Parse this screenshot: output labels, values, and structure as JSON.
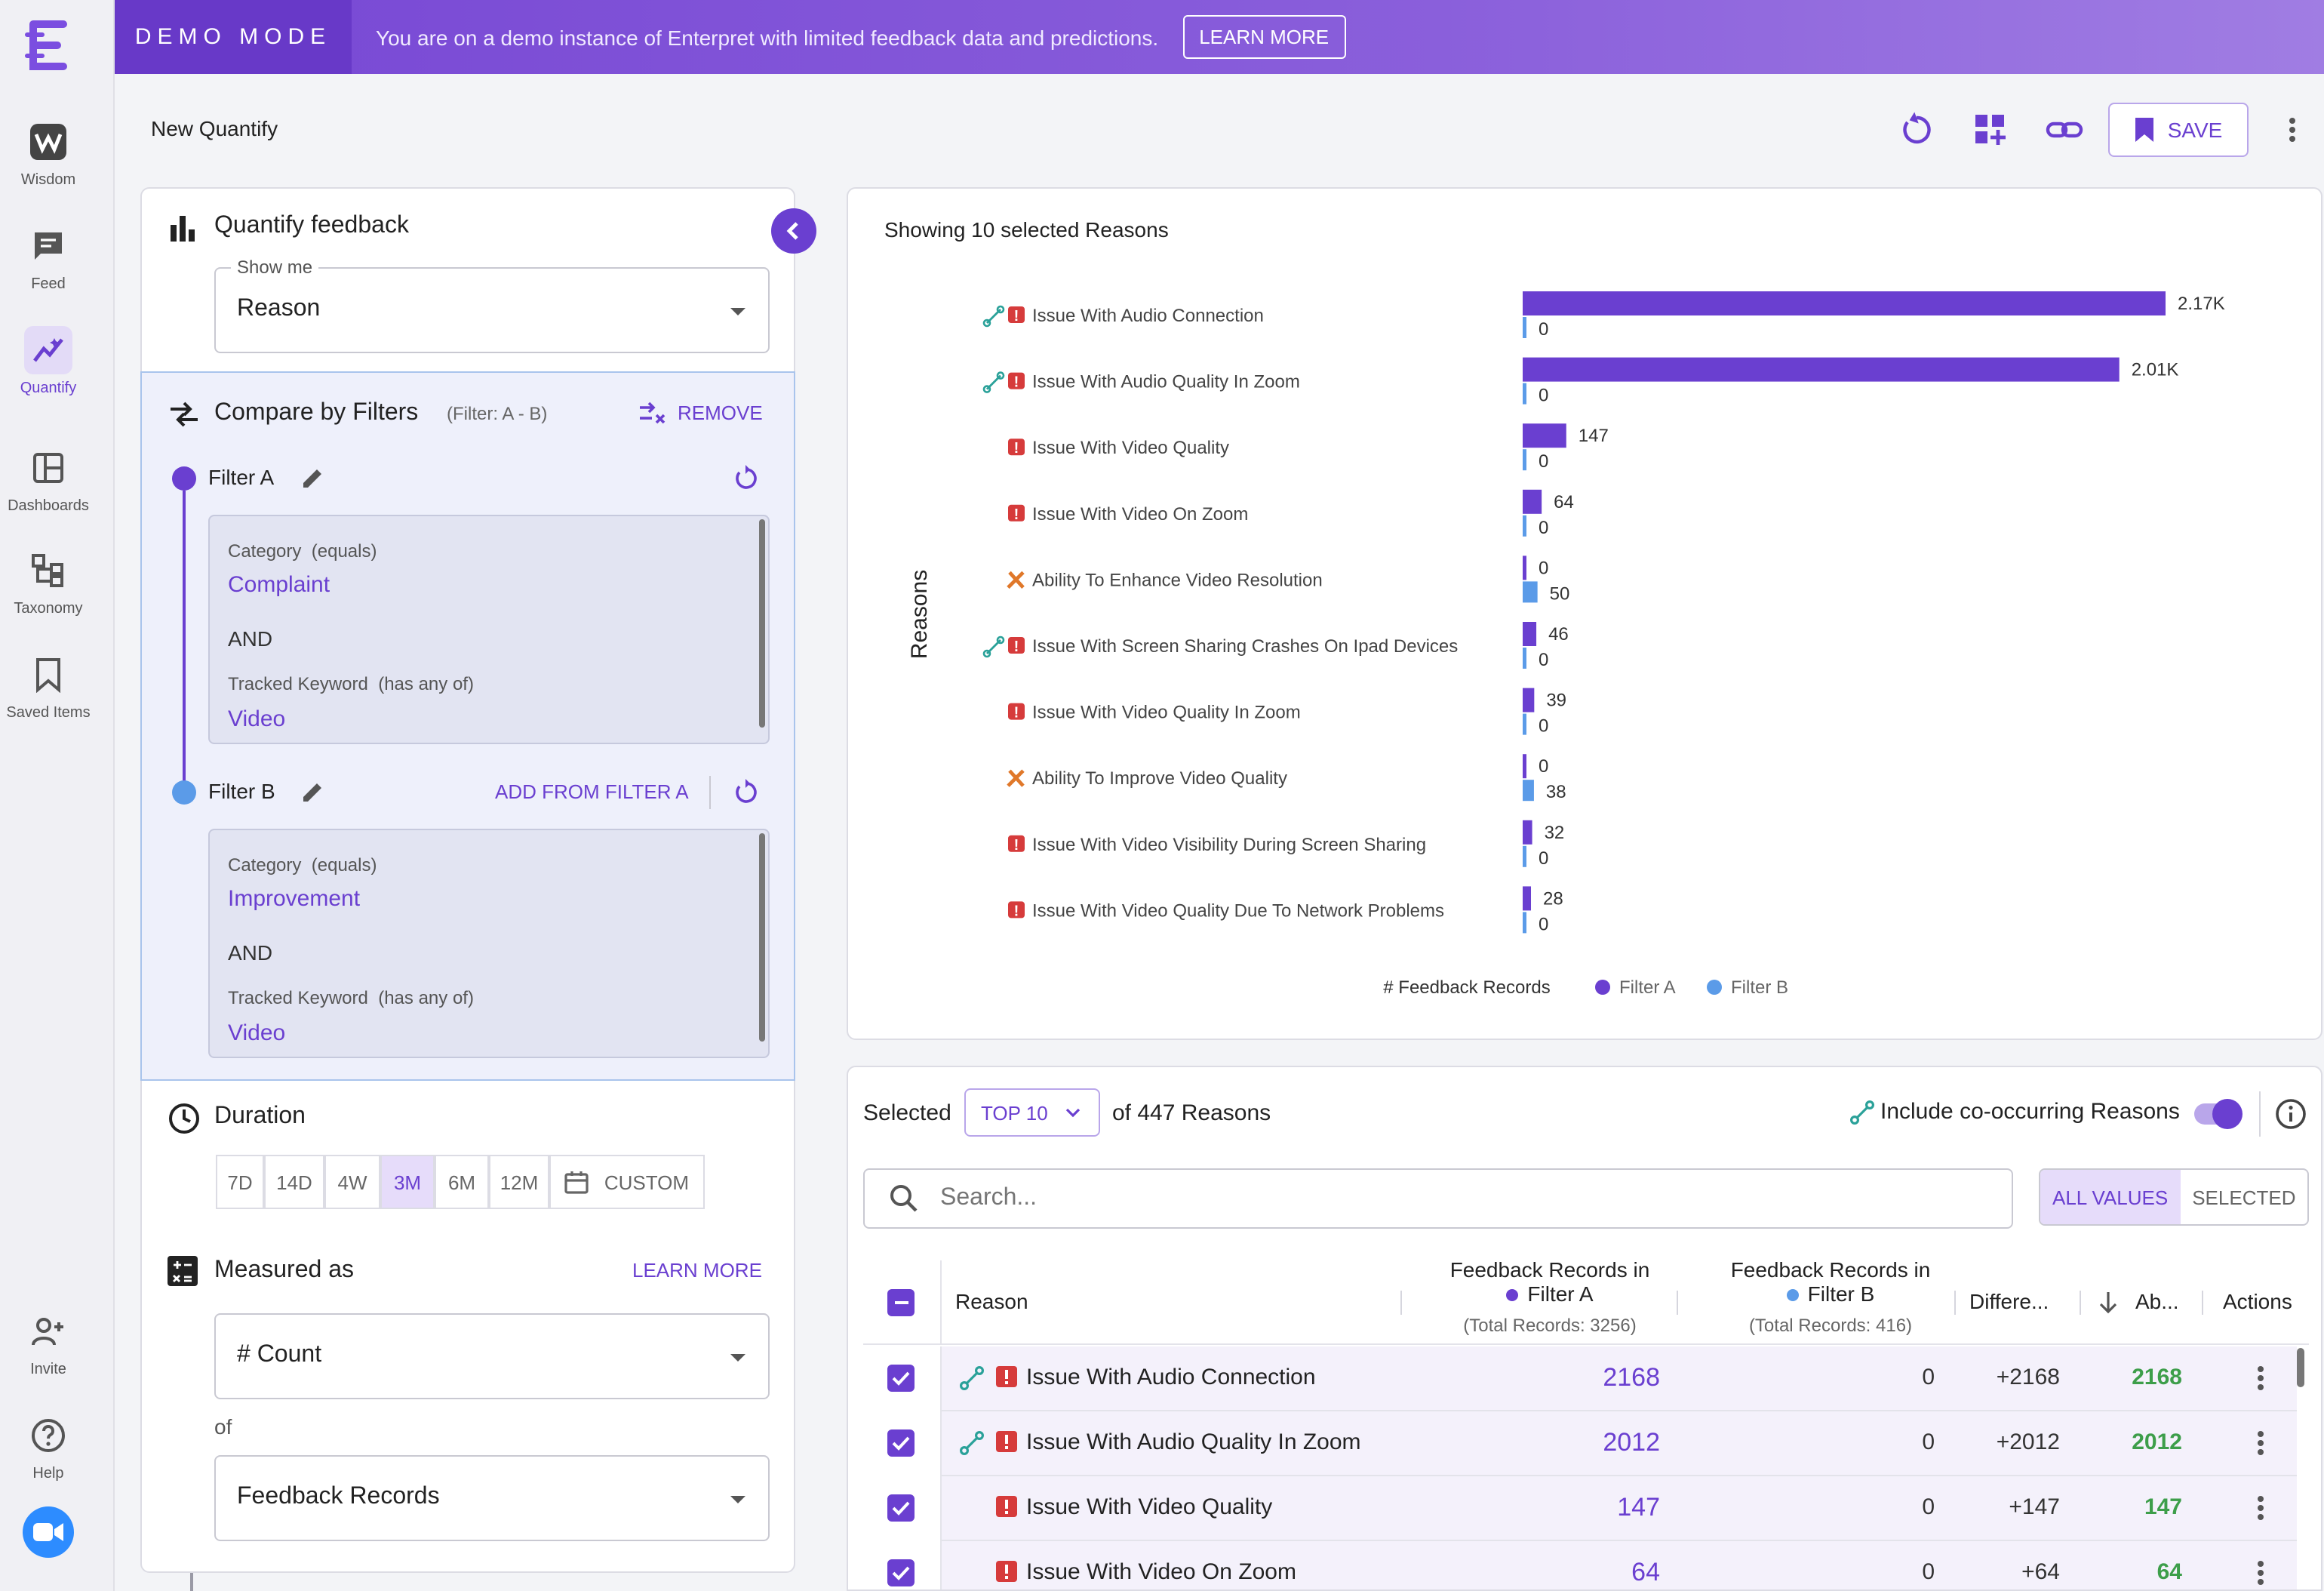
{
  "nav": {
    "items": [
      {
        "label": "Wisdom"
      },
      {
        "label": "Feed"
      },
      {
        "label": "Quantify"
      },
      {
        "label": "Dashboards"
      },
      {
        "label": "Taxonomy"
      },
      {
        "label": "Saved Items"
      },
      {
        "label": "Invite"
      },
      {
        "label": "Help"
      }
    ]
  },
  "banner": {
    "mode": "DEMO MODE",
    "message": "You are on a demo instance of Enterpret with limited feedback data and predictions.",
    "learn_more": "LEARN MORE"
  },
  "header": {
    "title": "New Quantify",
    "save_label": "SAVE"
  },
  "quantify": {
    "title": "Quantify feedback",
    "show_me_label": "Show me",
    "show_me_value": "Reason"
  },
  "compare": {
    "title": "Compare by Filters",
    "subtitle": "(Filter: A - B)",
    "remove_label": "REMOVE",
    "filter_a": {
      "name": "Filter A",
      "cond1_label": "Category",
      "cond1_op": "(equals)",
      "cond1_value": "Complaint",
      "and": "AND",
      "cond2_label": "Tracked Keyword",
      "cond2_op": "(has any of)",
      "cond2_value": "Video"
    },
    "filter_b": {
      "name": "Filter B",
      "add_from": "ADD FROM FILTER A",
      "cond1_label": "Category",
      "cond1_op": "(equals)",
      "cond1_value": "Improvement",
      "and": "AND",
      "cond2_label": "Tracked Keyword",
      "cond2_op": "(has any of)",
      "cond2_value": "Video"
    }
  },
  "duration": {
    "title": "Duration",
    "options": [
      "7D",
      "14D",
      "4W",
      "3M",
      "6M",
      "12M"
    ],
    "selected": "3M",
    "custom": "CUSTOM"
  },
  "measured": {
    "title": "Measured as",
    "learn_more": "LEARN MORE",
    "metric": "# Count",
    "of_label": "of",
    "of_value": "Feedback Records"
  },
  "chart": {
    "heading": "Showing 10 selected Reasons",
    "colors": {
      "filter_a": "#6a3fd0",
      "filter_b": "#5b9be8"
    }
  },
  "chart_data": {
    "type": "bar",
    "orientation": "horizontal",
    "ylabel": "Reasons",
    "xlabel": "# Feedback Records",
    "legend": "bottom",
    "categories": [
      "Issue With Audio Connection",
      "Issue With Audio Quality In Zoom",
      "Issue With Video Quality",
      "Issue With Video On Zoom",
      "Ability To Enhance Video Resolution",
      "Issue With Screen Sharing Crashes On Ipad Devices",
      "Issue With Video Quality In Zoom",
      "Ability To Improve Video Quality",
      "Issue With Video Visibility During Screen Sharing",
      "Issue With Video Quality Due To Network Problems"
    ],
    "category_icons": [
      "complaint",
      "complaint",
      "complaint",
      "complaint",
      "improvement",
      "complaint",
      "complaint",
      "improvement",
      "complaint",
      "complaint"
    ],
    "cooccurring": [
      true,
      true,
      false,
      false,
      false,
      true,
      false,
      false,
      false,
      false
    ],
    "series": [
      {
        "name": "Filter A",
        "values": [
          2168,
          2012,
          147,
          64,
          0,
          46,
          39,
          0,
          32,
          28
        ],
        "labels": [
          "2.17K",
          "2.01K",
          "147",
          "64",
          "0",
          "46",
          "39",
          "0",
          "32",
          "28"
        ]
      },
      {
        "name": "Filter B",
        "values": [
          0,
          0,
          0,
          0,
          50,
          0,
          0,
          38,
          0,
          0
        ],
        "labels": [
          "0",
          "0",
          "0",
          "0",
          "50",
          "0",
          "0",
          "38",
          "0",
          "0"
        ]
      }
    ],
    "xlim": [
      0,
      2168
    ]
  },
  "table_controls": {
    "selected_label": "Selected",
    "top_value": "TOP 10",
    "of_label": "of 447 Reasons",
    "cooccur_label": "Include co-occurring Reasons",
    "search_placeholder": "Search...",
    "all_values": "ALL VALUES",
    "selected_tab": "SELECTED"
  },
  "table": {
    "headers": {
      "reason": "Reason",
      "fa_line1": "Feedback Records in",
      "fa_line2": "Filter A",
      "fa_total": "(Total Records: 3256)",
      "fb_line1": "Feedback Records in",
      "fb_line2": "Filter B",
      "fb_total": "(Total Records: 416)",
      "diff": "Differe...",
      "abs": "Ab...",
      "actions": "Actions"
    },
    "rows": [
      {
        "reason": "Issue With Audio Connection",
        "fa": "2168",
        "fb": "0",
        "diff": "+2168",
        "abs": "2168",
        "cooccur": true
      },
      {
        "reason": "Issue With Audio Quality In Zoom",
        "fa": "2012",
        "fb": "0",
        "diff": "+2012",
        "abs": "2012",
        "cooccur": true
      },
      {
        "reason": "Issue With Video Quality",
        "fa": "147",
        "fb": "0",
        "diff": "+147",
        "abs": "147",
        "cooccur": false
      },
      {
        "reason": "Issue With Video On Zoom",
        "fa": "64",
        "fb": "0",
        "diff": "+64",
        "abs": "64",
        "cooccur": false
      }
    ]
  }
}
